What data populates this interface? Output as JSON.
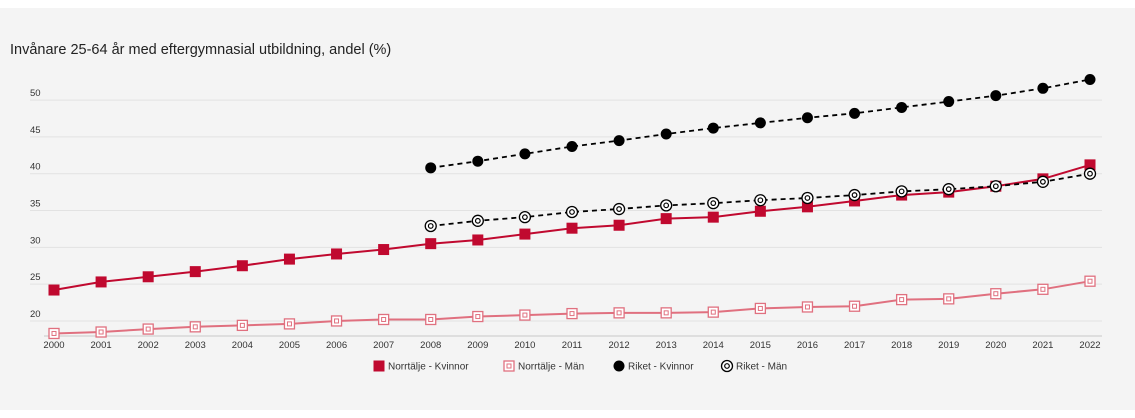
{
  "chart_data": {
    "type": "line",
    "title": "Invånare 25-64 år med eftergymnasial utbildning, andel (%)",
    "xlabel": "",
    "ylabel": "",
    "x": [
      "2000",
      "2001",
      "2002",
      "2003",
      "2004",
      "2005",
      "2006",
      "2007",
      "2008",
      "2009",
      "2010",
      "2011",
      "2012",
      "2013",
      "2014",
      "2015",
      "2016",
      "2017",
      "2018",
      "2019",
      "2020",
      "2021",
      "2022"
    ],
    "y_ticks": [
      20,
      25,
      30,
      35,
      40,
      45,
      50
    ],
    "ylim": [
      18.5,
      53
    ],
    "grid": true,
    "legend_position": "bottom",
    "series": [
      {
        "name": "Norrtälje - Kvinnor",
        "color": "#c0092f",
        "marker": "square-filled",
        "line": "solid",
        "values": [
          24.2,
          25.3,
          26.0,
          26.7,
          27.5,
          28.4,
          29.1,
          29.7,
          30.5,
          31.0,
          31.8,
          32.6,
          33.0,
          33.9,
          34.1,
          34.9,
          35.5,
          36.3,
          37.1,
          37.5,
          38.3,
          39.3,
          41.2
        ]
      },
      {
        "name": "Norrtälje - Män",
        "color": "#e0707f",
        "marker": "square-open",
        "line": "solid",
        "values": [
          18.3,
          18.5,
          18.9,
          19.2,
          19.4,
          19.6,
          20.0,
          20.2,
          20.2,
          20.6,
          20.8,
          21.0,
          21.1,
          21.1,
          21.2,
          21.7,
          21.9,
          22.0,
          22.9,
          23.0,
          23.7,
          24.3,
          25.4
        ]
      },
      {
        "name": "Riket - Kvinnor",
        "color": "#000000",
        "marker": "circle-filled",
        "line": "dashed",
        "values": [
          null,
          null,
          null,
          null,
          null,
          null,
          null,
          null,
          40.8,
          41.7,
          42.7,
          43.7,
          44.5,
          45.4,
          46.2,
          46.9,
          47.6,
          48.2,
          49.0,
          49.8,
          50.6,
          51.6,
          52.8
        ]
      },
      {
        "name": "Riket - Män",
        "color": "#000000",
        "marker": "circle-ring",
        "line": "dashed",
        "values": [
          null,
          null,
          null,
          null,
          null,
          null,
          null,
          null,
          32.9,
          33.6,
          34.1,
          34.8,
          35.2,
          35.7,
          36.0,
          36.4,
          36.7,
          37.1,
          37.6,
          37.9,
          38.3,
          38.9,
          40.0
        ]
      }
    ]
  }
}
